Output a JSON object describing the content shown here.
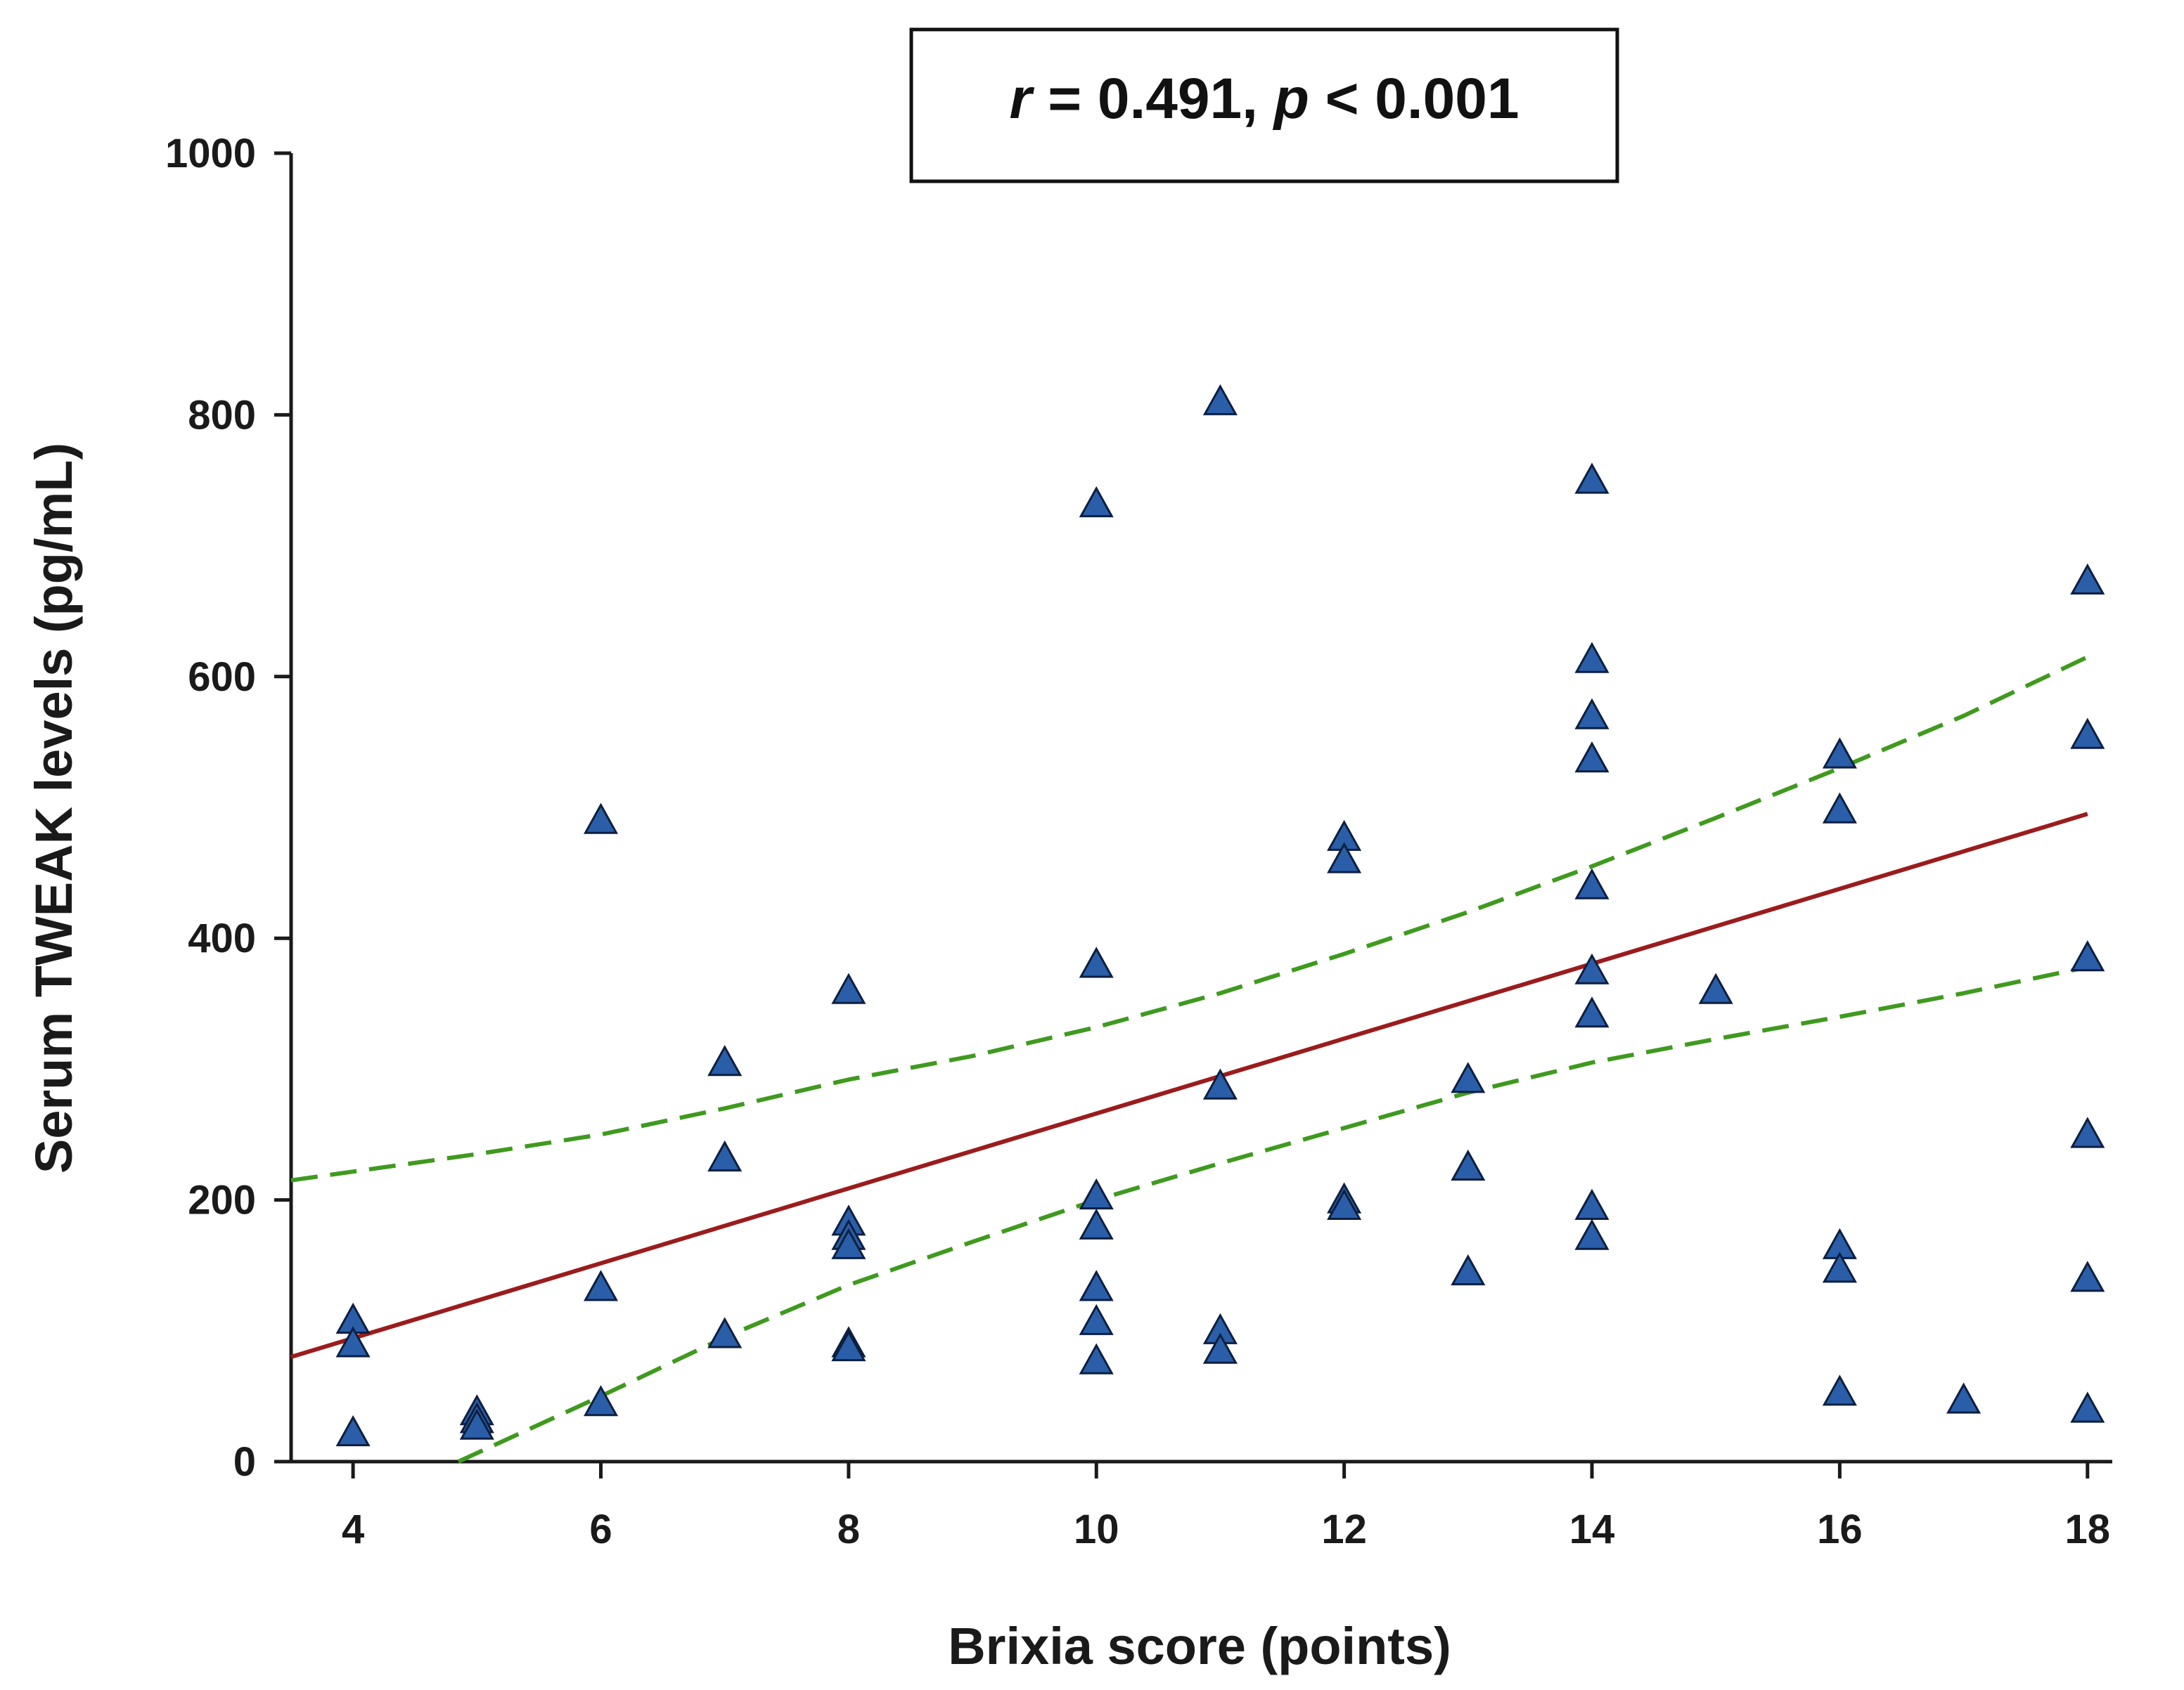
{
  "chart_data": {
    "type": "scatter",
    "title": "",
    "annotation": {
      "r_symbol": "r",
      "r_value": " = 0.491, ",
      "p_symbol": "p",
      "p_value": " < 0.001"
    },
    "xlabel": "Brixia score (points)",
    "ylabel": "Serum TWEAK levels (pg/mL)",
    "xlim": [
      3.5,
      18.2
    ],
    "ylim": [
      0,
      1000
    ],
    "xticks": [
      4,
      6,
      8,
      10,
      12,
      14,
      16,
      18
    ],
    "yticks": [
      0,
      200,
      400,
      600,
      800,
      1000
    ],
    "grid": false,
    "colors": {
      "marker_fill": "#2a5ea8",
      "marker_edge": "#0d1f40",
      "regression_line": "#9b1c1c",
      "confidence_band": "#3f9a1f",
      "axis": "#1a1a1a"
    },
    "marker": "triangle",
    "points": [
      {
        "x": 4,
        "y": 108
      },
      {
        "x": 4,
        "y": 90
      },
      {
        "x": 4,
        "y": 22
      },
      {
        "x": 5,
        "y": 38
      },
      {
        "x": 5,
        "y": 32
      },
      {
        "x": 5,
        "y": 27
      },
      {
        "x": 6,
        "y": 490
      },
      {
        "x": 6,
        "y": 133
      },
      {
        "x": 6,
        "y": 45
      },
      {
        "x": 7,
        "y": 305
      },
      {
        "x": 7,
        "y": 232
      },
      {
        "x": 7,
        "y": 97
      },
      {
        "x": 8,
        "y": 360
      },
      {
        "x": 8,
        "y": 183
      },
      {
        "x": 8,
        "y": 172
      },
      {
        "x": 8,
        "y": 165
      },
      {
        "x": 8,
        "y": 90
      },
      {
        "x": 8,
        "y": 87
      },
      {
        "x": 10,
        "y": 732
      },
      {
        "x": 10,
        "y": 380
      },
      {
        "x": 10,
        "y": 203
      },
      {
        "x": 10,
        "y": 180
      },
      {
        "x": 10,
        "y": 133
      },
      {
        "x": 10,
        "y": 107
      },
      {
        "x": 10,
        "y": 77
      },
      {
        "x": 11,
        "y": 810
      },
      {
        "x": 11,
        "y": 287
      },
      {
        "x": 11,
        "y": 100
      },
      {
        "x": 11,
        "y": 85
      },
      {
        "x": 12,
        "y": 477
      },
      {
        "x": 12,
        "y": 460
      },
      {
        "x": 12,
        "y": 200
      },
      {
        "x": 12,
        "y": 195
      },
      {
        "x": 13,
        "y": 292
      },
      {
        "x": 13,
        "y": 225
      },
      {
        "x": 13,
        "y": 145
      },
      {
        "x": 14,
        "y": 750
      },
      {
        "x": 14,
        "y": 613
      },
      {
        "x": 14,
        "y": 570
      },
      {
        "x": 14,
        "y": 537
      },
      {
        "x": 14,
        "y": 440
      },
      {
        "x": 14,
        "y": 375
      },
      {
        "x": 14,
        "y": 342
      },
      {
        "x": 14,
        "y": 195
      },
      {
        "x": 14,
        "y": 172
      },
      {
        "x": 15,
        "y": 360
      },
      {
        "x": 16,
        "y": 540
      },
      {
        "x": 16,
        "y": 498
      },
      {
        "x": 16,
        "y": 165
      },
      {
        "x": 16,
        "y": 147
      },
      {
        "x": 16,
        "y": 53
      },
      {
        "x": 17,
        "y": 47
      },
      {
        "x": 18,
        "y": 673
      },
      {
        "x": 18,
        "y": 555
      },
      {
        "x": 18,
        "y": 385
      },
      {
        "x": 18,
        "y": 250
      },
      {
        "x": 18,
        "y": 140
      },
      {
        "x": 18,
        "y": 40
      }
    ],
    "regression_line": [
      {
        "x": 3.5,
        "y": 80
      },
      {
        "x": 18,
        "y": 495
      }
    ],
    "confidence_upper": [
      {
        "x": 3.5,
        "y": 215
      },
      {
        "x": 5,
        "y": 235
      },
      {
        "x": 6,
        "y": 250
      },
      {
        "x": 7,
        "y": 270
      },
      {
        "x": 8,
        "y": 292
      },
      {
        "x": 9,
        "y": 310
      },
      {
        "x": 10,
        "y": 332
      },
      {
        "x": 11,
        "y": 358
      },
      {
        "x": 12,
        "y": 388
      },
      {
        "x": 13,
        "y": 420
      },
      {
        "x": 14,
        "y": 455
      },
      {
        "x": 15,
        "y": 492
      },
      {
        "x": 16,
        "y": 530
      },
      {
        "x": 17,
        "y": 570
      },
      {
        "x": 18,
        "y": 615
      }
    ],
    "confidence_lower": [
      {
        "x": 4.85,
        "y": 0
      },
      {
        "x": 6,
        "y": 50
      },
      {
        "x": 7,
        "y": 95
      },
      {
        "x": 8,
        "y": 135
      },
      {
        "x": 9,
        "y": 168
      },
      {
        "x": 10,
        "y": 200
      },
      {
        "x": 11,
        "y": 228
      },
      {
        "x": 12,
        "y": 255
      },
      {
        "x": 13,
        "y": 282
      },
      {
        "x": 14,
        "y": 305
      },
      {
        "x": 15,
        "y": 323
      },
      {
        "x": 16,
        "y": 340
      },
      {
        "x": 17,
        "y": 358
      },
      {
        "x": 18,
        "y": 378
      }
    ]
  }
}
